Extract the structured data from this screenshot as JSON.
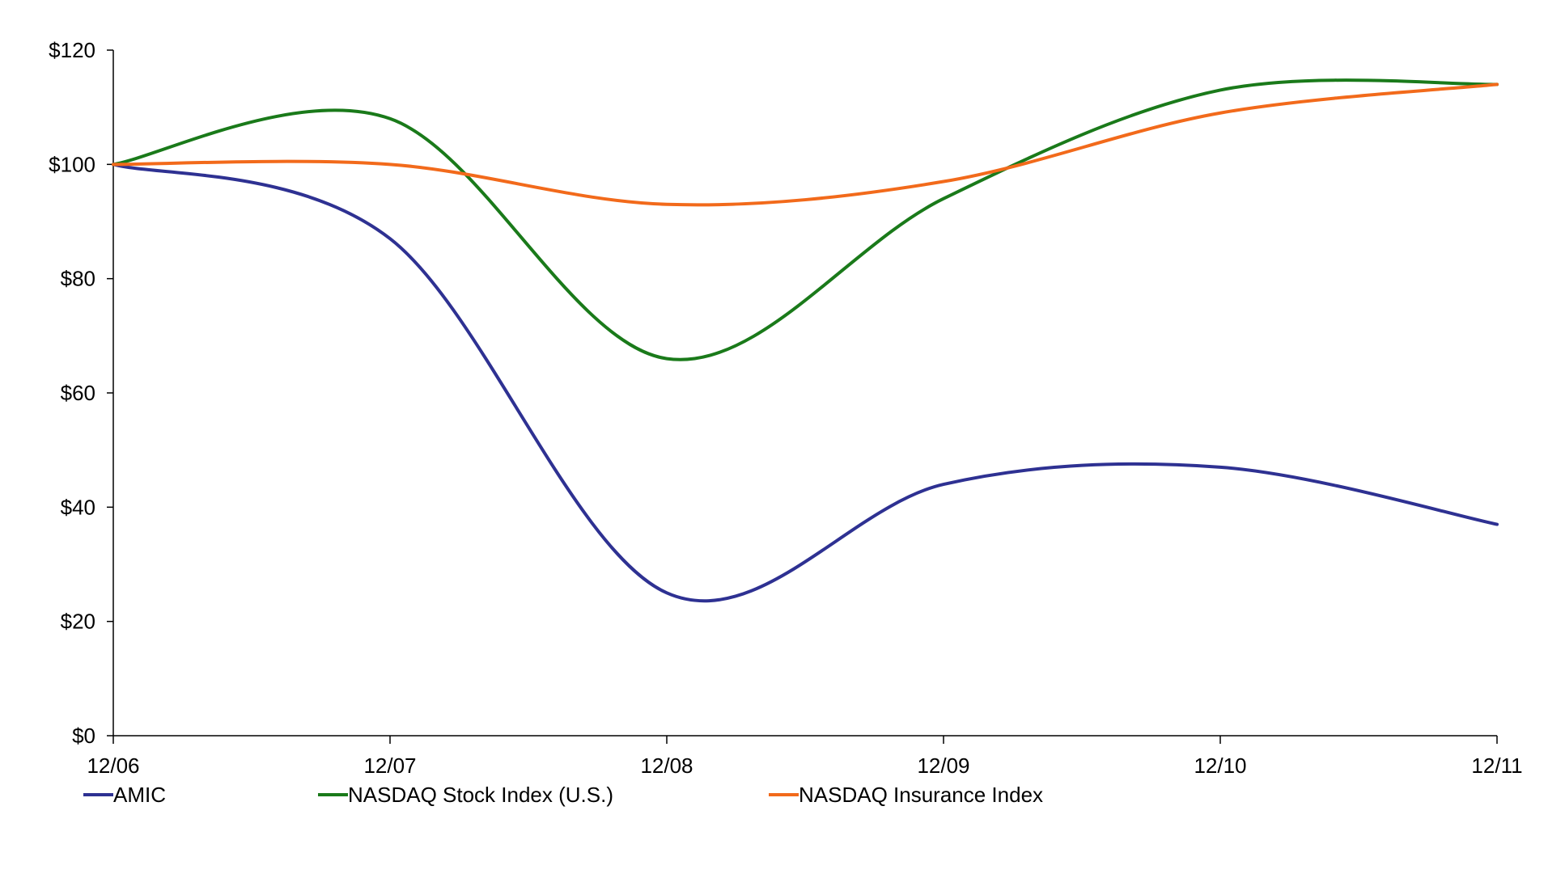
{
  "chart_data": {
    "type": "line",
    "title": "",
    "xlabel": "",
    "ylabel": "",
    "categories": [
      "12/06",
      "12/07",
      "12/08",
      "12/09",
      "12/10",
      "12/11"
    ],
    "y_ticks": [
      "$0",
      "$20",
      "$40",
      "$60",
      "$80",
      "$100",
      "$120"
    ],
    "ylim": [
      0,
      120
    ],
    "grid": false,
    "legend_position": "bottom",
    "series": [
      {
        "name": "AMIC",
        "color": "#2e3192",
        "values": [
          100,
          87,
          25,
          44,
          47,
          37
        ]
      },
      {
        "name": "NASDAQ Stock Index (U.S.)",
        "color": "#1a7a1a",
        "values": [
          100,
          108,
          66,
          94,
          113,
          114
        ]
      },
      {
        "name": "NASDAQ Insurance Index",
        "color": "#f26a1b",
        "values": [
          100,
          100,
          93,
          97,
          109,
          114
        ]
      }
    ]
  }
}
